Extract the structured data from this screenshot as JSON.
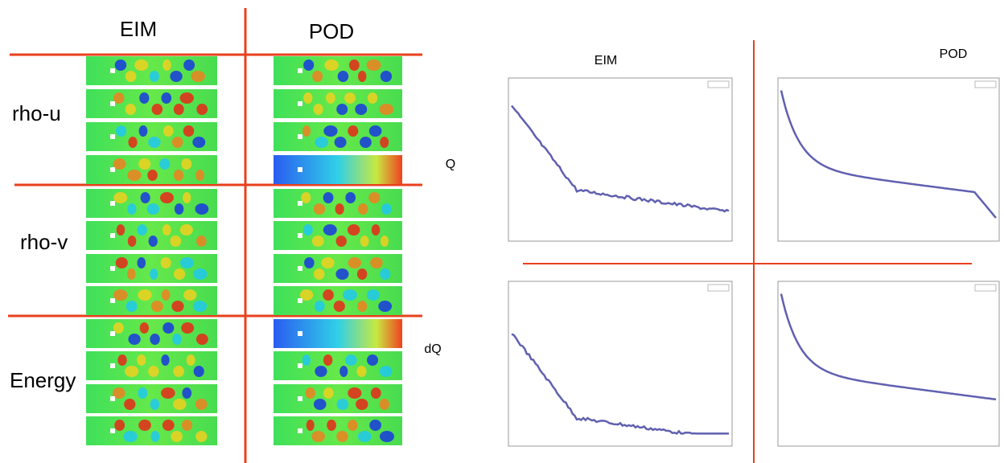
{
  "left_panel": {
    "columns": [
      "EIM",
      "POD"
    ],
    "rows": [
      "rho-u",
      "rho-v",
      "Energy"
    ]
  },
  "right_panel": {
    "columns": [
      "EIM",
      "POD"
    ],
    "rows": [
      "Q",
      "dQ"
    ]
  }
}
